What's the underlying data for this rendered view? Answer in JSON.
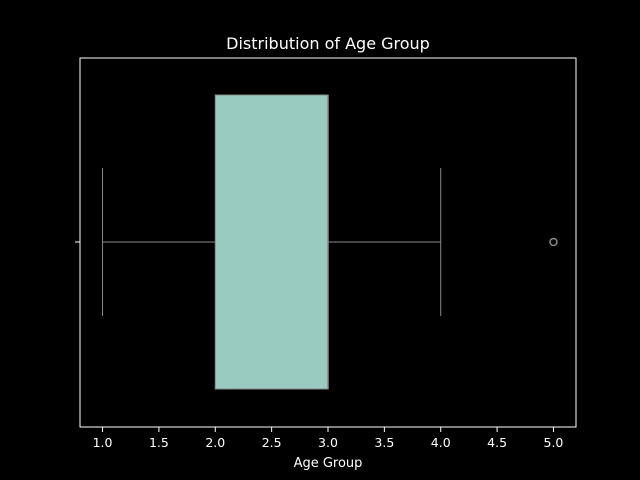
{
  "chart_data": {
    "type": "box",
    "title": "Distribution of Age Group",
    "xlabel": "Age Group",
    "ylabel": "",
    "xlim": [
      0.8,
      5.2
    ],
    "xticks": [
      1.0,
      1.5,
      2.0,
      2.5,
      3.0,
      3.5,
      4.0,
      4.5,
      5.0
    ],
    "xtick_labels": [
      "1.0",
      "1.5",
      "2.0",
      "2.5",
      "3.0",
      "3.5",
      "4.0",
      "4.5",
      "5.0"
    ],
    "orientation": "horizontal",
    "grid": false,
    "box": {
      "whisker_low": 1.0,
      "q1": 2.0,
      "median": 3.0,
      "q3": 3.0,
      "whisker_high": 4.0,
      "outliers": [
        5.0
      ]
    },
    "colors": {
      "background": "#000000",
      "box_fill": "#99cbc1",
      "box_edge": "#8a8a8a",
      "whisker": "#8a8a8a",
      "axes": "#ffffff",
      "text": "#ffffff"
    }
  }
}
